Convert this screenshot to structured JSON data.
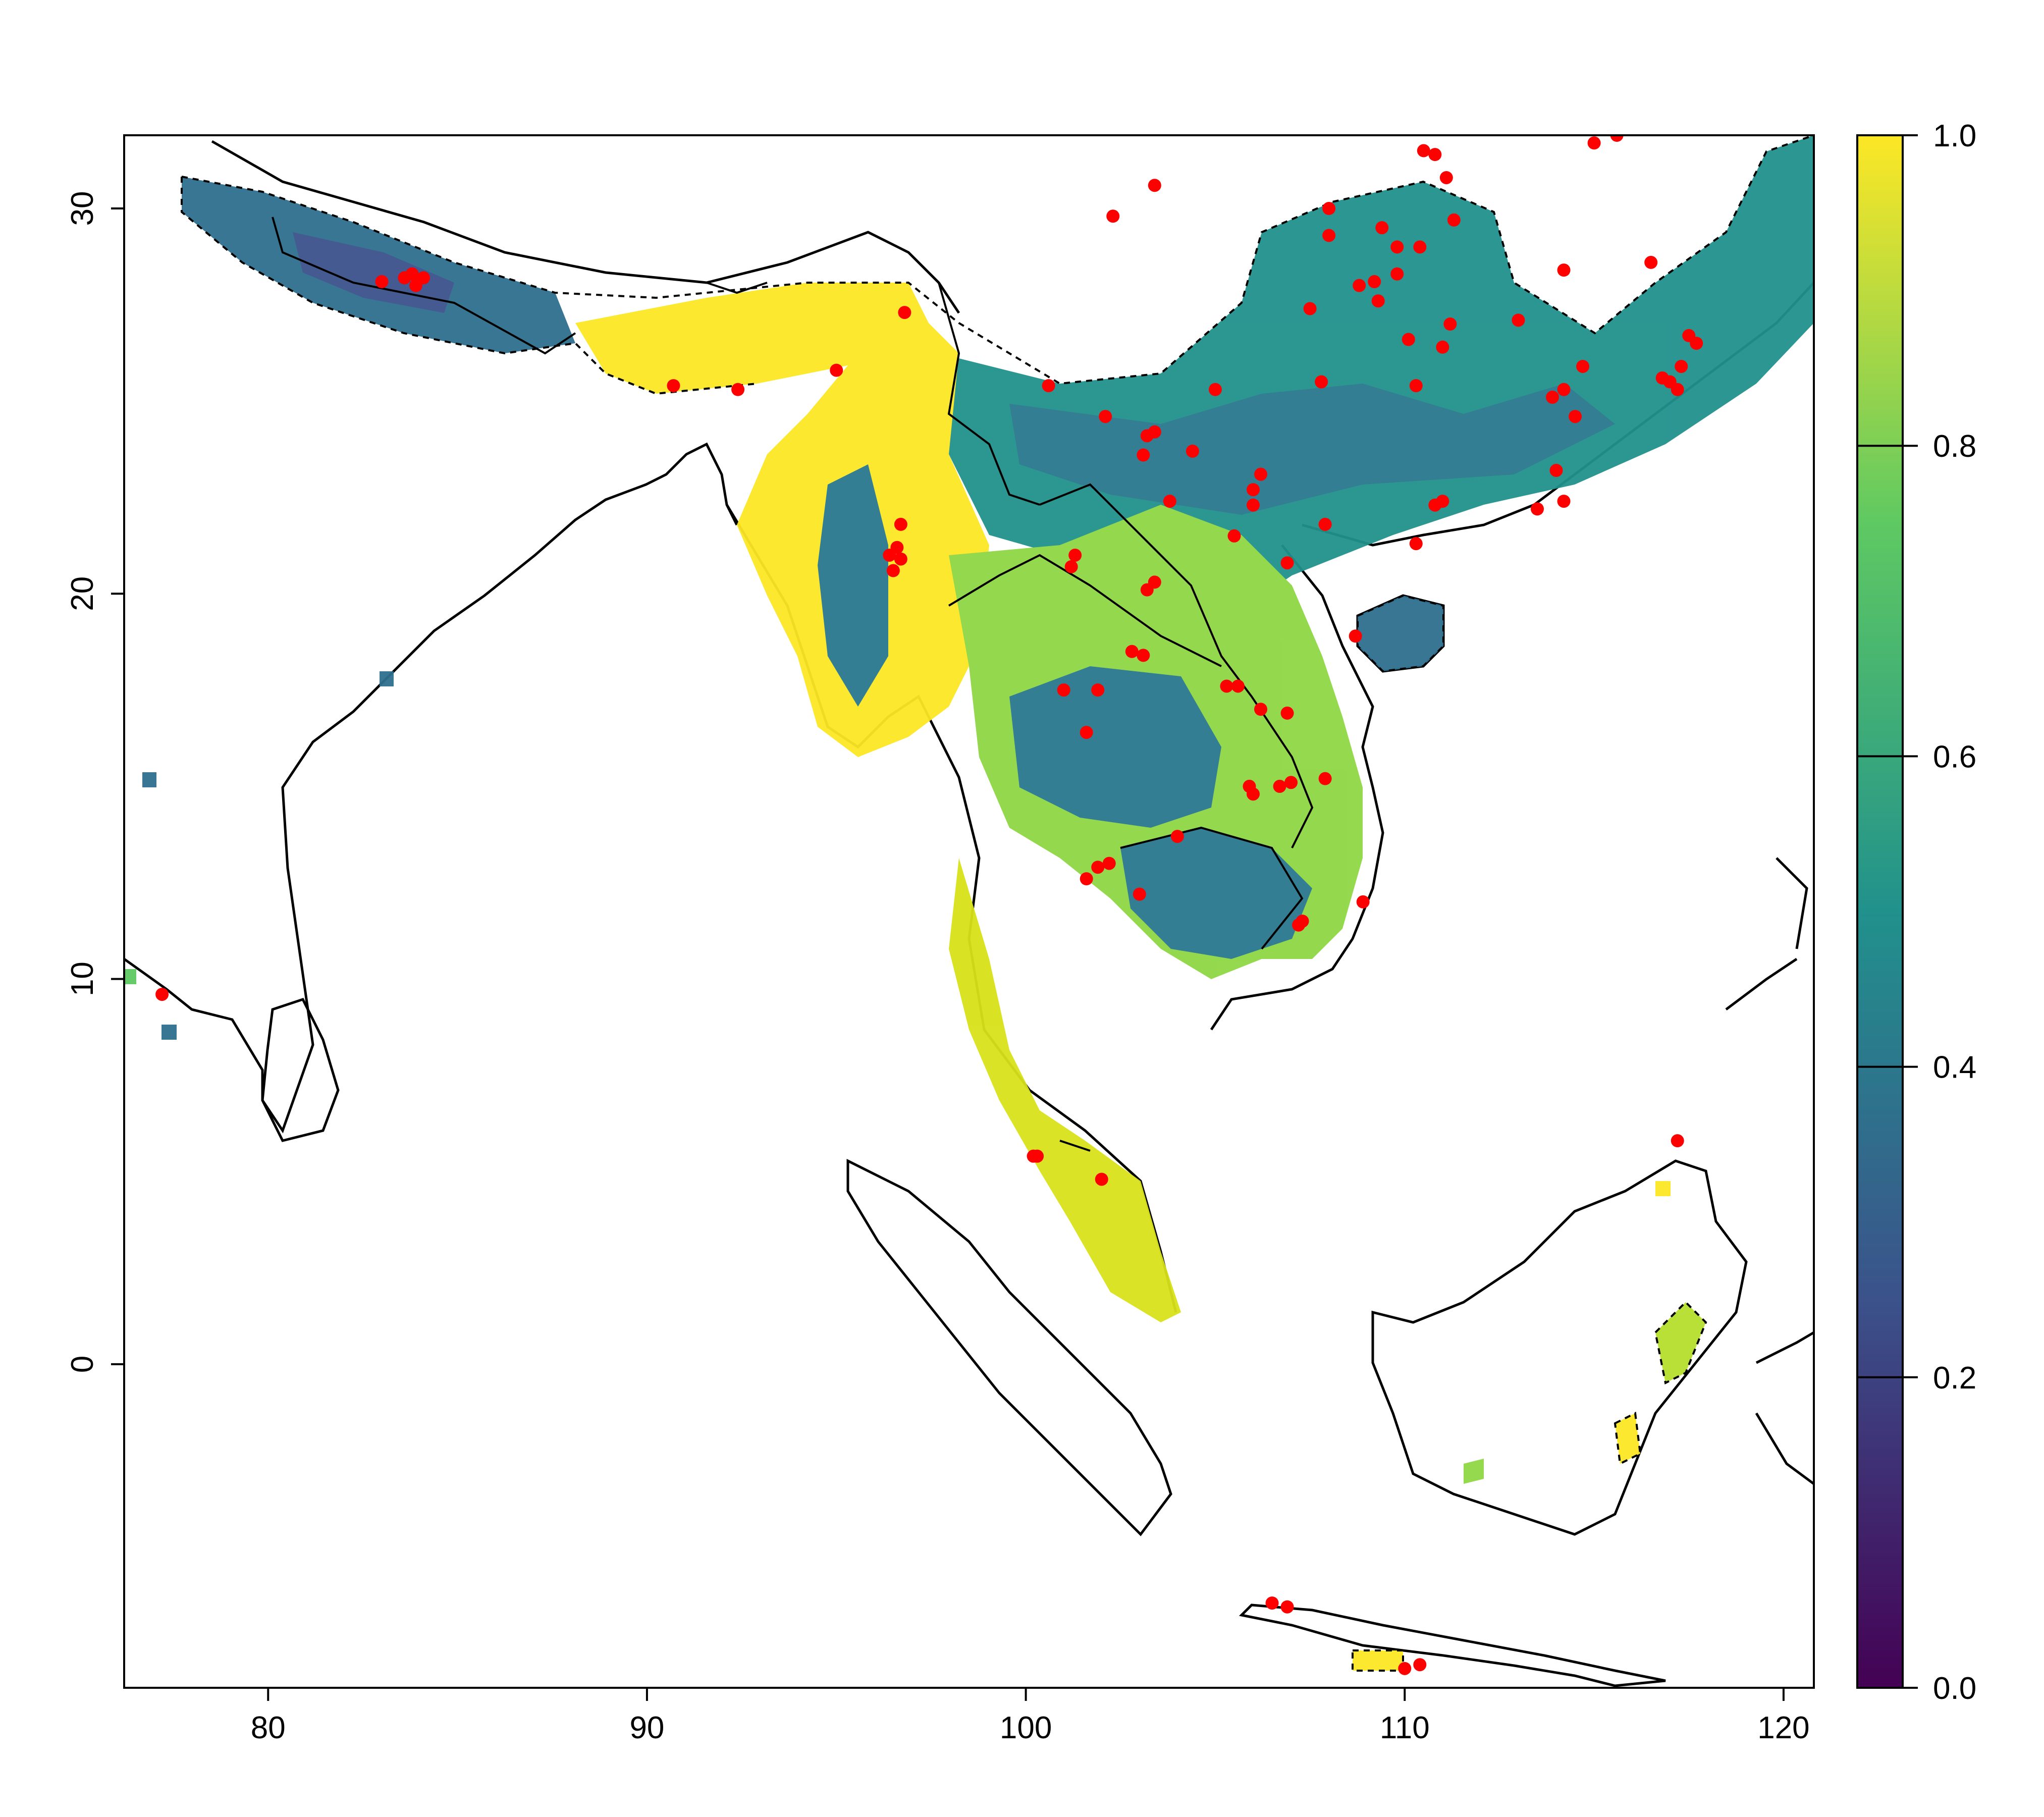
{
  "map": {
    "x_axis": {
      "range": [
        76.2,
        120.8
      ],
      "ticks": [
        "80",
        "90",
        "100",
        "110",
        "120"
      ]
    },
    "y_axis": {
      "range": [
        -8.4,
        31.9
      ],
      "ticks": [
        "0",
        "10",
        "20",
        "30"
      ]
    },
    "colorbar": {
      "range": [
        0.0,
        1.0
      ],
      "ticks": [
        "0.0",
        "0.2",
        "0.4",
        "0.6",
        "0.8",
        "1.0"
      ],
      "palette": [
        "#440154",
        "#3b528b",
        "#21918c",
        "#5ec962",
        "#fde725"
      ]
    },
    "occurrence_color": "#ff0000",
    "outline_color": "#000000"
  }
}
